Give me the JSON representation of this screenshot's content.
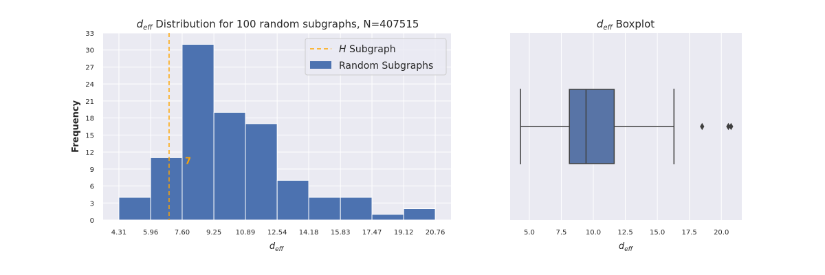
{
  "chart_data": [
    {
      "type": "bar",
      "title_main": "d",
      "title_sub": "eff",
      "title_rest": " Distribution for 100 random subgraphs, N=407515",
      "ylabel": "Frequency",
      "xlabel_main": "d",
      "xlabel_sub": "eff",
      "bin_edges": [
        4.31,
        5.96,
        7.6,
        9.25,
        10.89,
        12.54,
        14.18,
        15.83,
        17.47,
        19.12,
        20.76
      ],
      "xtick_labels": [
        "4.31",
        "5.96",
        "7.60",
        "9.25",
        "10.89",
        "12.54",
        "14.18",
        "15.83",
        "17.47",
        "19.12",
        "20.76"
      ],
      "values": [
        4,
        11,
        31,
        19,
        17,
        7,
        4,
        4,
        1,
        2
      ],
      "ylim": [
        0,
        33
      ],
      "yticks": [
        0,
        3,
        6,
        9,
        12,
        15,
        18,
        21,
        24,
        27,
        30,
        33
      ],
      "xlim": [
        3.49,
        21.58
      ],
      "reference_line": {
        "x": 6.92,
        "label_italic": "H",
        "label_rest": " Subgraph",
        "color": "#ffa500"
      },
      "annotation": {
        "text": "7",
        "color": "#ffa500"
      },
      "legend": {
        "position": "top-right",
        "entries": [
          "H Subgraph",
          "Random Subgraphs"
        ]
      },
      "series_name": "Random Subgraphs",
      "bar_color": "#4c72b0",
      "grid": true
    },
    {
      "type": "box",
      "title_main": "d",
      "title_sub": "eff",
      "title_rest": " Boxplot",
      "xlabel_main": "d",
      "xlabel_sub": "eff",
      "xlim": [
        3.5,
        21.6
      ],
      "xticks": [
        5.0,
        7.5,
        10.0,
        12.5,
        15.0,
        17.5,
        20.0
      ],
      "xtick_labels": [
        "5.0",
        "7.5",
        "10.0",
        "12.5",
        "15.0",
        "17.5",
        "20.0"
      ],
      "box": {
        "whisker_low": 4.31,
        "q1": 8.13,
        "median": 9.43,
        "q3": 11.63,
        "whisker_high": 16.3
      },
      "outliers": [
        18.5,
        20.55,
        20.76
      ],
      "box_color": "#5874a6",
      "grid": true
    }
  ]
}
